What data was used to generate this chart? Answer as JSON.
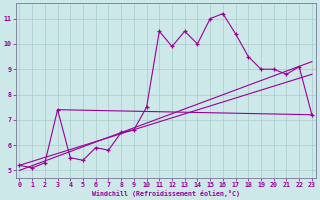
{
  "x": [
    0,
    1,
    2,
    3,
    4,
    5,
    6,
    7,
    8,
    9,
    10,
    11,
    12,
    13,
    14,
    15,
    16,
    17,
    18,
    19,
    20,
    21,
    22,
    23
  ],
  "main_line": [
    5.2,
    5.1,
    5.3,
    7.4,
    5.5,
    5.4,
    5.9,
    5.8,
    6.5,
    6.6,
    7.5,
    10.5,
    9.9,
    10.5,
    10.0,
    11.0,
    11.2,
    10.4,
    9.5,
    9.0,
    9.0,
    8.8,
    9.1,
    7.2
  ],
  "flat_line_x": [
    3,
    23
  ],
  "flat_line_y": [
    7.4,
    7.2
  ],
  "trend1_x": [
    0,
    23
  ],
  "trend1_y": [
    5.2,
    8.8
  ],
  "trend2_x": [
    0,
    23
  ],
  "trend2_y": [
    5.0,
    9.3
  ],
  "line_color": "#990099",
  "bg_color": "#cce8e8",
  "grid_color": "#aacccc",
  "ylim": [
    4.7,
    11.6
  ],
  "xlim": [
    -0.3,
    23.3
  ],
  "xlabel": "Windchill (Refroidissement éolien,°C)",
  "yticks": [
    5,
    6,
    7,
    8,
    9,
    10,
    11
  ],
  "xticks": [
    0,
    1,
    2,
    3,
    4,
    5,
    6,
    7,
    8,
    9,
    10,
    11,
    12,
    13,
    14,
    15,
    16,
    17,
    18,
    19,
    20,
    21,
    22,
    23
  ]
}
